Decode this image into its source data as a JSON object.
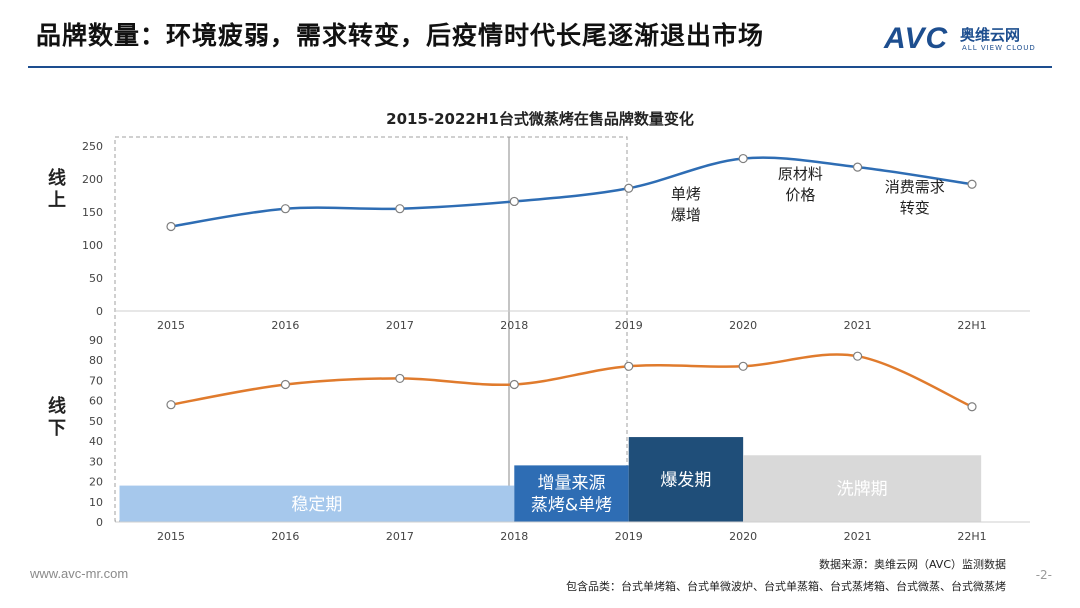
{
  "header": {
    "title": "品牌数量：环境疲弱，需求转变，后疫情时代长尾逐渐退出市场",
    "logo_text": "AVC",
    "logo_cn": "奥维云网",
    "logo_en": "ALL VIEW CLOUD"
  },
  "colors": {
    "brand": "#1d4e8f",
    "online_line": "#2e6db4",
    "offline_line": "#e07b2d",
    "phase_stable": "#a6c8ec",
    "phase_growth": "#2e6db4",
    "phase_boom": "#1f4e79",
    "phase_shakeout": "#d9d9d9"
  },
  "chart_data": {
    "type": "line",
    "title": "2015-2022H1台式微蒸烤在售品牌数量变化",
    "categories": [
      "2015",
      "2016",
      "2017",
      "2018",
      "2019",
      "2020",
      "2021",
      "22H1"
    ],
    "panels": [
      {
        "name": "线上",
        "label_lines": [
          "线",
          "上"
        ],
        "ylim": [
          0,
          250
        ],
        "yticks": [
          0,
          50,
          100,
          150,
          200,
          250
        ],
        "values": [
          128,
          155,
          155,
          166,
          186,
          231,
          218,
          192
        ],
        "annotations": [
          {
            "lines": [
              "单烤",
              "爆增"
            ],
            "x": 4.5,
            "y": 170
          },
          {
            "lines": [
              "原材料",
              "价格"
            ],
            "x": 5.5,
            "y": 200
          },
          {
            "lines": [
              "消费需求",
              "转变"
            ],
            "x": 6.5,
            "y": 180
          }
        ]
      },
      {
        "name": "线下",
        "label_lines": [
          "线",
          "下"
        ],
        "ylim": [
          0,
          90
        ],
        "yticks": [
          0,
          10,
          20,
          30,
          40,
          50,
          60,
          70,
          80,
          90
        ],
        "values": [
          58,
          68,
          71,
          68,
          77,
          77,
          82,
          57
        ],
        "phases": [
          {
            "lines": [
              "稳定期"
            ],
            "start": -0.45,
            "end": 3,
            "top": 18,
            "color": "#a6c8ec"
          },
          {
            "lines": [
              "增量来源",
              "蒸烤&单烤"
            ],
            "start": 3,
            "end": 4,
            "top": 28,
            "color": "#2e6db4"
          },
          {
            "lines": [
              "爆发期"
            ],
            "start": 4,
            "end": 5,
            "top": 42,
            "color": "#1f4e79"
          },
          {
            "lines": [
              "洗牌期"
            ],
            "start": 5,
            "end": 7.08,
            "top": 33,
            "color": "#d9d9d9"
          }
        ]
      }
    ]
  },
  "footer": {
    "url": "www.avc-mr.com",
    "source": "数据来源：奥维云网（AVC）监测数据",
    "includes": "包含品类：台式单烤箱、台式单微波炉、台式单蒸箱、台式蒸烤箱、台式微蒸、台式微蒸烤",
    "page": "-2-"
  }
}
